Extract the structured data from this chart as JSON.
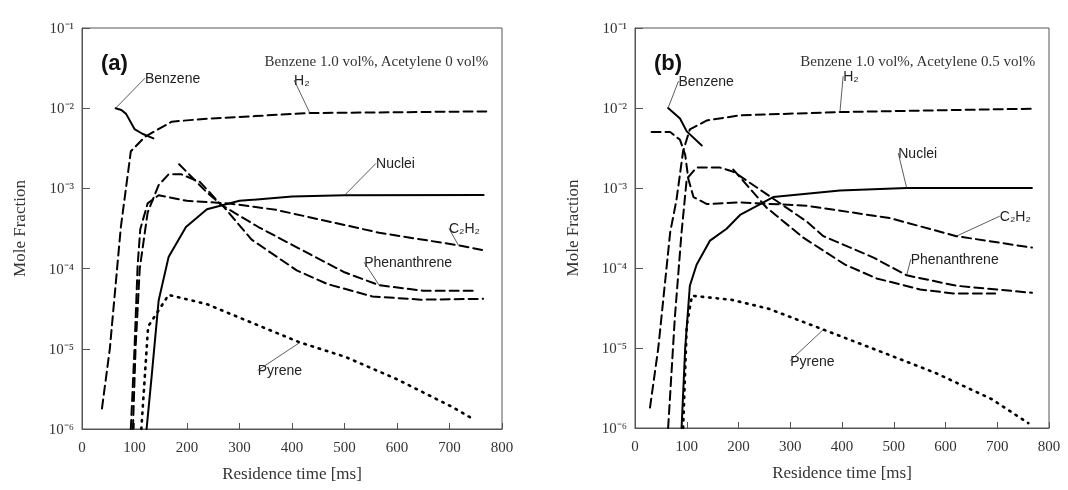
{
  "chart_data": [
    {
      "type": "line",
      "title": "(a)",
      "subtitle": "Benzene 1.0 vol%, Acetylene 0 vol%",
      "xlabel": "Residence time [ms]",
      "ylabel": "Mole Fraction",
      "log": "y",
      "marker": "none",
      "xlim": [
        0,
        800
      ],
      "xticks": [
        0,
        100,
        200,
        300,
        400,
        500,
        600,
        700,
        800
      ],
      "ylim": [
        1e-06,
        0.1
      ],
      "yticks": [
        {
          "value": 1e-06,
          "label": "10⁻⁶"
        },
        {
          "value": 1e-05,
          "label": "10⁻⁵"
        },
        {
          "value": 0.0001,
          "label": "10⁻⁴"
        },
        {
          "value": 0.001,
          "label": "10⁻³"
        },
        {
          "value": 0.01,
          "label": "10⁻²"
        },
        {
          "value": 0.1,
          "label": "10⁻¹"
        }
      ],
      "series": [
        {
          "name": "H₂",
          "color": "#000000",
          "line_style": "dashed",
          "x": [
            38,
            53,
            74,
            93,
            120,
            171,
            238,
            434,
            750,
            770
          ],
          "values": [
            1.8e-06,
            1e-05,
            0.00033,
            0.0029,
            0.0044,
            0.0068,
            0.0074,
            0.0087,
            0.0091,
            0.0091
          ]
        },
        {
          "name": "Benzene",
          "color": "#000000",
          "line_style": "solid",
          "x": [
            64,
            75,
            84,
            100,
            115,
            136
          ],
          "values": [
            0.01,
            0.0095,
            0.0085,
            0.0055,
            0.0048,
            0.0042
          ]
        },
        {
          "name": "C₂H₂",
          "color": "#000000",
          "line_style": "dashed",
          "x": [
            93,
            100,
            106,
            111,
            125,
            146,
            200,
            280,
            370,
            566,
            717,
            764
          ],
          "values": [
            1e-06,
            1e-05,
            0.00011,
            0.00031,
            0.00065,
            0.00082,
            0.0007,
            0.00065,
            0.00054,
            0.00028,
            0.000195,
            0.00017
          ]
        },
        {
          "name": "Phenanthrene",
          "color": "#000000",
          "line_style": "dashed",
          "x": [
            97,
            102,
            110,
            125,
            146,
            165,
            189,
            225,
            264,
            336,
            435,
            500,
            566,
            650,
            750
          ],
          "values": [
            1e-06,
            1e-05,
            0.0001,
            0.0005,
            0.0011,
            0.0015,
            0.0015,
            0.0012,
            0.00063,
            0.00033,
            0.00015,
            9e-05,
            6.2e-05,
            5.3e-05,
            5.3e-05
          ]
        },
        {
          "name": "Nuclei",
          "color": "#000000",
          "line_style": "solid",
          "x": [
            123,
            133,
            146,
            165,
            198,
            238,
            300,
            400,
            500,
            765
          ],
          "values": [
            1e-06,
            4.8e-06,
            4e-05,
            0.00014,
            0.00033,
            0.00055,
            0.0007,
            0.00079,
            0.00082,
            0.00083
          ]
        },
        {
          "name": "Pyrene",
          "color": "#000000",
          "line_style": "dotted",
          "x": [
            113,
            126,
            165,
            238,
            317,
            415,
            500,
            599,
            704,
            743
          ],
          "values": [
            1e-06,
            1.9e-05,
            4.7e-05,
            3.6e-05,
            2.2e-05,
            1.2e-05,
            8e-06,
            4.2e-06,
            1.9e-06,
            1.35e-06
          ]
        },
        {
          "color": "#000000",
          "line_style": "dashed",
          "x": [
            185,
            238,
            270,
            323,
            409,
            468,
            553,
            645,
            764
          ],
          "values": [
            0.002,
            0.00089,
            0.00059,
            0.00023,
            9.5e-05,
            6.4e-05,
            4.5e-05,
            4.1e-05,
            4.2e-05
          ]
        }
      ]
    },
    {
      "type": "line",
      "title": "(b)",
      "subtitle": "Benzene 1.0 vol%, Acetylene 0.5 vol%",
      "xlabel": "Residence time [ms]",
      "ylabel": "Mole Fraction",
      "log": "y",
      "marker": "none",
      "xlim": [
        0,
        800
      ],
      "xticks": [
        0,
        100,
        200,
        300,
        400,
        500,
        600,
        700,
        800
      ],
      "ylim": [
        1e-06,
        0.1
      ],
      "yticks": [
        {
          "value": 1e-06,
          "label": "10⁻⁶"
        },
        {
          "value": 1e-05,
          "label": "10⁻⁵"
        },
        {
          "value": 0.0001,
          "label": "10⁻⁴"
        },
        {
          "value": 0.001,
          "label": "10⁻³"
        },
        {
          "value": 0.01,
          "label": "10⁻²"
        },
        {
          "value": 0.1,
          "label": "10⁻¹"
        }
      ],
      "series": [
        {
          "name": "H₂",
          "color": "#000000",
          "line_style": "dashed",
          "x": [
            29,
            45,
            68,
            80,
            93,
            106,
            139,
            203,
            396,
            767
          ],
          "values": [
            1.8e-06,
            1e-05,
            0.00028,
            0.0007,
            0.0029,
            0.0054,
            0.007,
            0.0081,
            0.0089,
            0.0098
          ]
        },
        {
          "name": "Benzene",
          "color": "#000000",
          "line_style": "solid",
          "x": [
            64,
            87,
            100,
            129
          ],
          "values": [
            0.01,
            0.0074,
            0.0051,
            0.0034
          ]
        },
        {
          "name": "C₂H₂",
          "color": "#000000",
          "line_style": "dashed",
          "x": [
            32,
            68,
            87,
            97,
            103,
            113,
            139,
            203,
            332,
            493,
            621,
            767
          ],
          "values": [
            0.005,
            0.005,
            0.004,
            0.0026,
            0.0013,
            0.00077,
            0.00063,
            0.00066,
            0.0006,
            0.00042,
            0.00025,
            0.00018
          ]
        },
        {
          "name": "Phenanthrene",
          "color": "#000000",
          "line_style": "dashed",
          "x": [
            64,
            77,
            90,
            100,
            119,
            164,
            190,
            242,
            332,
            364,
            461,
            525,
            621,
            767
          ],
          "values": [
            1e-06,
            2.4e-05,
            0.00028,
            0.0013,
            0.0018,
            0.0018,
            0.0016,
            0.00095,
            0.00038,
            0.00025,
            0.000135,
            8.1e-05,
            6e-05,
            4.9e-05
          ]
        },
        {
          "name": "Nuclei",
          "color": "#000000",
          "line_style": "solid",
          "x": [
            90,
            97,
            106,
            119,
            145,
            177,
            203,
            267,
            396,
            525,
            767
          ],
          "values": [
            1e-06,
            1e-05,
            6e-05,
            0.00011,
            0.00022,
            0.00031,
            0.00046,
            0.00077,
            0.00093,
            0.001,
            0.001
          ]
        },
        {
          "name": "Pyrene",
          "color": "#000000",
          "line_style": "dotted",
          "x": [
            93,
            100,
            110,
            187,
            258,
            364,
            473,
            580,
            689,
            760
          ],
          "values": [
            1e-06,
            1.9e-05,
            4.5e-05,
            4e-05,
            3.1e-05,
            1.7e-05,
            9.1e-06,
            4.9e-06,
            2.3e-06,
            1.15e-06
          ]
        },
        {
          "color": "#000000",
          "line_style": "dashed",
          "x": [
            190,
            254,
            325,
            406,
            467,
            551,
            615,
            696
          ],
          "values": [
            0.0017,
            0.00057,
            0.00024,
            0.00011,
            7.4e-05,
            5.4e-05,
            4.8e-05,
            4.8e-05
          ]
        }
      ]
    }
  ]
}
